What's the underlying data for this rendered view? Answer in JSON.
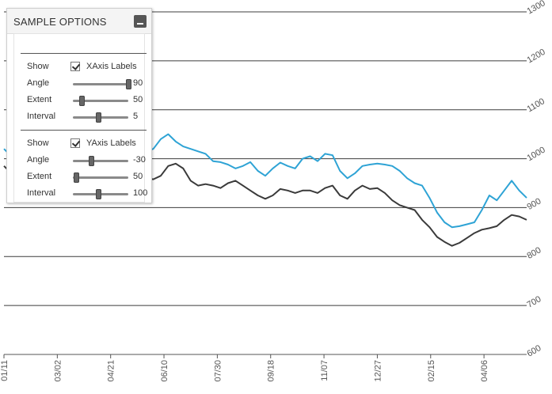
{
  "panel": {
    "title": "SAMPLE OPTIONS",
    "xaxis": {
      "show_label": "Show",
      "checkbox_label": "XAxis Labels",
      "checked": true,
      "angle_label": "Angle",
      "angle_value": "90",
      "angle_fraction": 1.0,
      "extent_label": "Extent",
      "extent_value": "50",
      "extent_fraction": 0.15,
      "interval_label": "Interval",
      "interval_value": "5",
      "interval_fraction": 0.45
    },
    "yaxis": {
      "show_label": "Show",
      "checkbox_label": "YAxis Labels",
      "checked": true,
      "angle_label": "Angle",
      "angle_value": "-30",
      "angle_fraction": 0.33,
      "extent_label": "Extent",
      "extent_value": "50",
      "extent_fraction": 0.05,
      "interval_label": "Interval",
      "interval_value": "100",
      "interval_fraction": 0.45
    }
  },
  "chart_data": {
    "type": "line",
    "title": "",
    "xlabel": "",
    "ylabel": "",
    "ylim": [
      600,
      1300
    ],
    "grid": true,
    "colors": {
      "series1": "#2ea3d5",
      "series2": "#3a3a3a",
      "grid": "#3c3c3c",
      "axis": "#555555"
    },
    "x_tick_labels": [
      "01/11",
      "03/02",
      "04/21",
      "06/10",
      "07/30",
      "09/18",
      "11/07",
      "12/27",
      "02/15",
      "04/06"
    ],
    "y_tick_labels": [
      "600",
      "700",
      "800",
      "900",
      "1000",
      "1100",
      "1200",
      "1300"
    ],
    "x_step_days": 7,
    "series": [
      {
        "values": [
          1020,
          1005,
          990,
          985,
          995,
          1000,
          990,
          980,
          985,
          995,
          990,
          985,
          980,
          1000,
          1020,
          1010,
          1005,
          1010,
          1012,
          1015,
          1020,
          1040,
          1050,
          1035,
          1025,
          1020,
          1015,
          1010,
          995,
          993,
          988,
          980,
          985,
          993,
          975,
          965,
          980,
          992,
          985,
          980,
          1000,
          1005,
          995,
          1010,
          1007,
          975,
          960,
          970,
          985,
          988,
          990,
          988,
          985,
          975,
          960,
          950,
          945,
          920,
          890,
          870,
          860,
          862,
          866,
          870,
          895,
          925,
          915,
          935,
          955,
          935,
          920
        ]
      },
      {
        "values": [
          985,
          970,
          955,
          945,
          950,
          960,
          955,
          940,
          945,
          955,
          950,
          945,
          935,
          945,
          970,
          955,
          940,
          975,
          978,
          960,
          958,
          965,
          985,
          990,
          980,
          955,
          945,
          948,
          945,
          940,
          950,
          955,
          945,
          935,
          925,
          918,
          925,
          938,
          935,
          930,
          935,
          935,
          930,
          940,
          945,
          925,
          918,
          935,
          945,
          938,
          940,
          930,
          915,
          905,
          900,
          895,
          875,
          860,
          840,
          830,
          822,
          828,
          838,
          848,
          855,
          858,
          862,
          875,
          885,
          882,
          875
        ]
      }
    ]
  }
}
